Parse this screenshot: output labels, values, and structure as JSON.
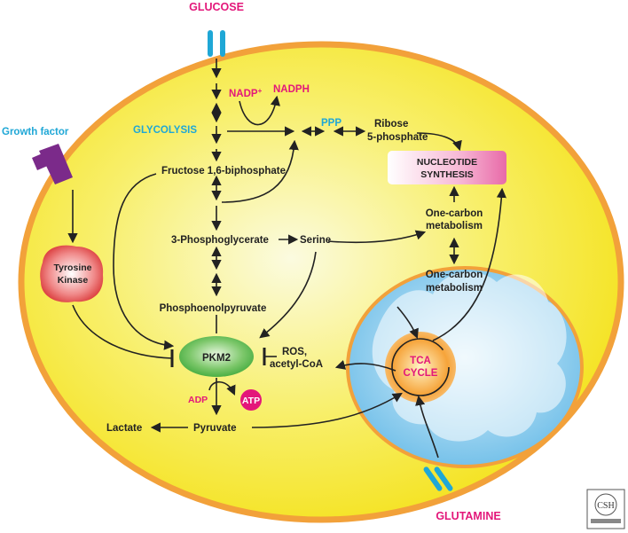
{
  "labels": {
    "glucose": "GLUCOSE",
    "glutamine": "GLUTAMINE",
    "growth_factor": "Growth factor",
    "glycolysis": "GLYCOLYSIS",
    "nadp_plus": "NADP",
    "nadp_sup": "+",
    "nadph": "NADPH",
    "ppp": "PPP",
    "ribose_line1": "Ribose",
    "ribose_line2": "5-phosphate",
    "fructose": "Fructose 1,6-biphosphate",
    "nucleotide_line1": "NUCLEOTIDE",
    "nucleotide_line2": "SYNTHESIS",
    "phosphoglycerate": "3-Phosphoglycerate",
    "serine": "Serine",
    "one_carbon_cyto_line1": "One-carbon",
    "one_carbon_cyto_line2": "metabolism",
    "one_carbon_mito_line1": "One-carbon",
    "one_carbon_mito_line2": "metabolism",
    "tyrosine_line1": "Tyrosine",
    "tyrosine_line2": "Kinase",
    "pep": "Phosphoenolpyruvate",
    "pkm2": "PKM2",
    "ros_line1": "ROS,",
    "ros_line2": "acetyl-CoA",
    "tca_line1": "TCA",
    "tca_line2": "CYCLE",
    "adp": "ADP",
    "atp": "ATP",
    "lactate": "Lactate",
    "pyruvate": "Pyruvate"
  },
  "colors": {
    "cell_fill": "#f7e92a",
    "cell_border": "#f2a13a",
    "mito_fill": "#8fcdee",
    "mito_border": "#f2a13a",
    "pink_text": "#e3177a",
    "blue_text": "#1fa7d6",
    "pkm2_fill": "#3da83a",
    "tyrosine_fill": "#d62a2a",
    "tca_fill": "#f4a43a",
    "atp_fill": "#e3177a",
    "receptor_purple": "#7b2a8a",
    "transporter_blue": "#1fa7d6"
  },
  "icons": {
    "logo": "csh-perspectives-logo"
  }
}
